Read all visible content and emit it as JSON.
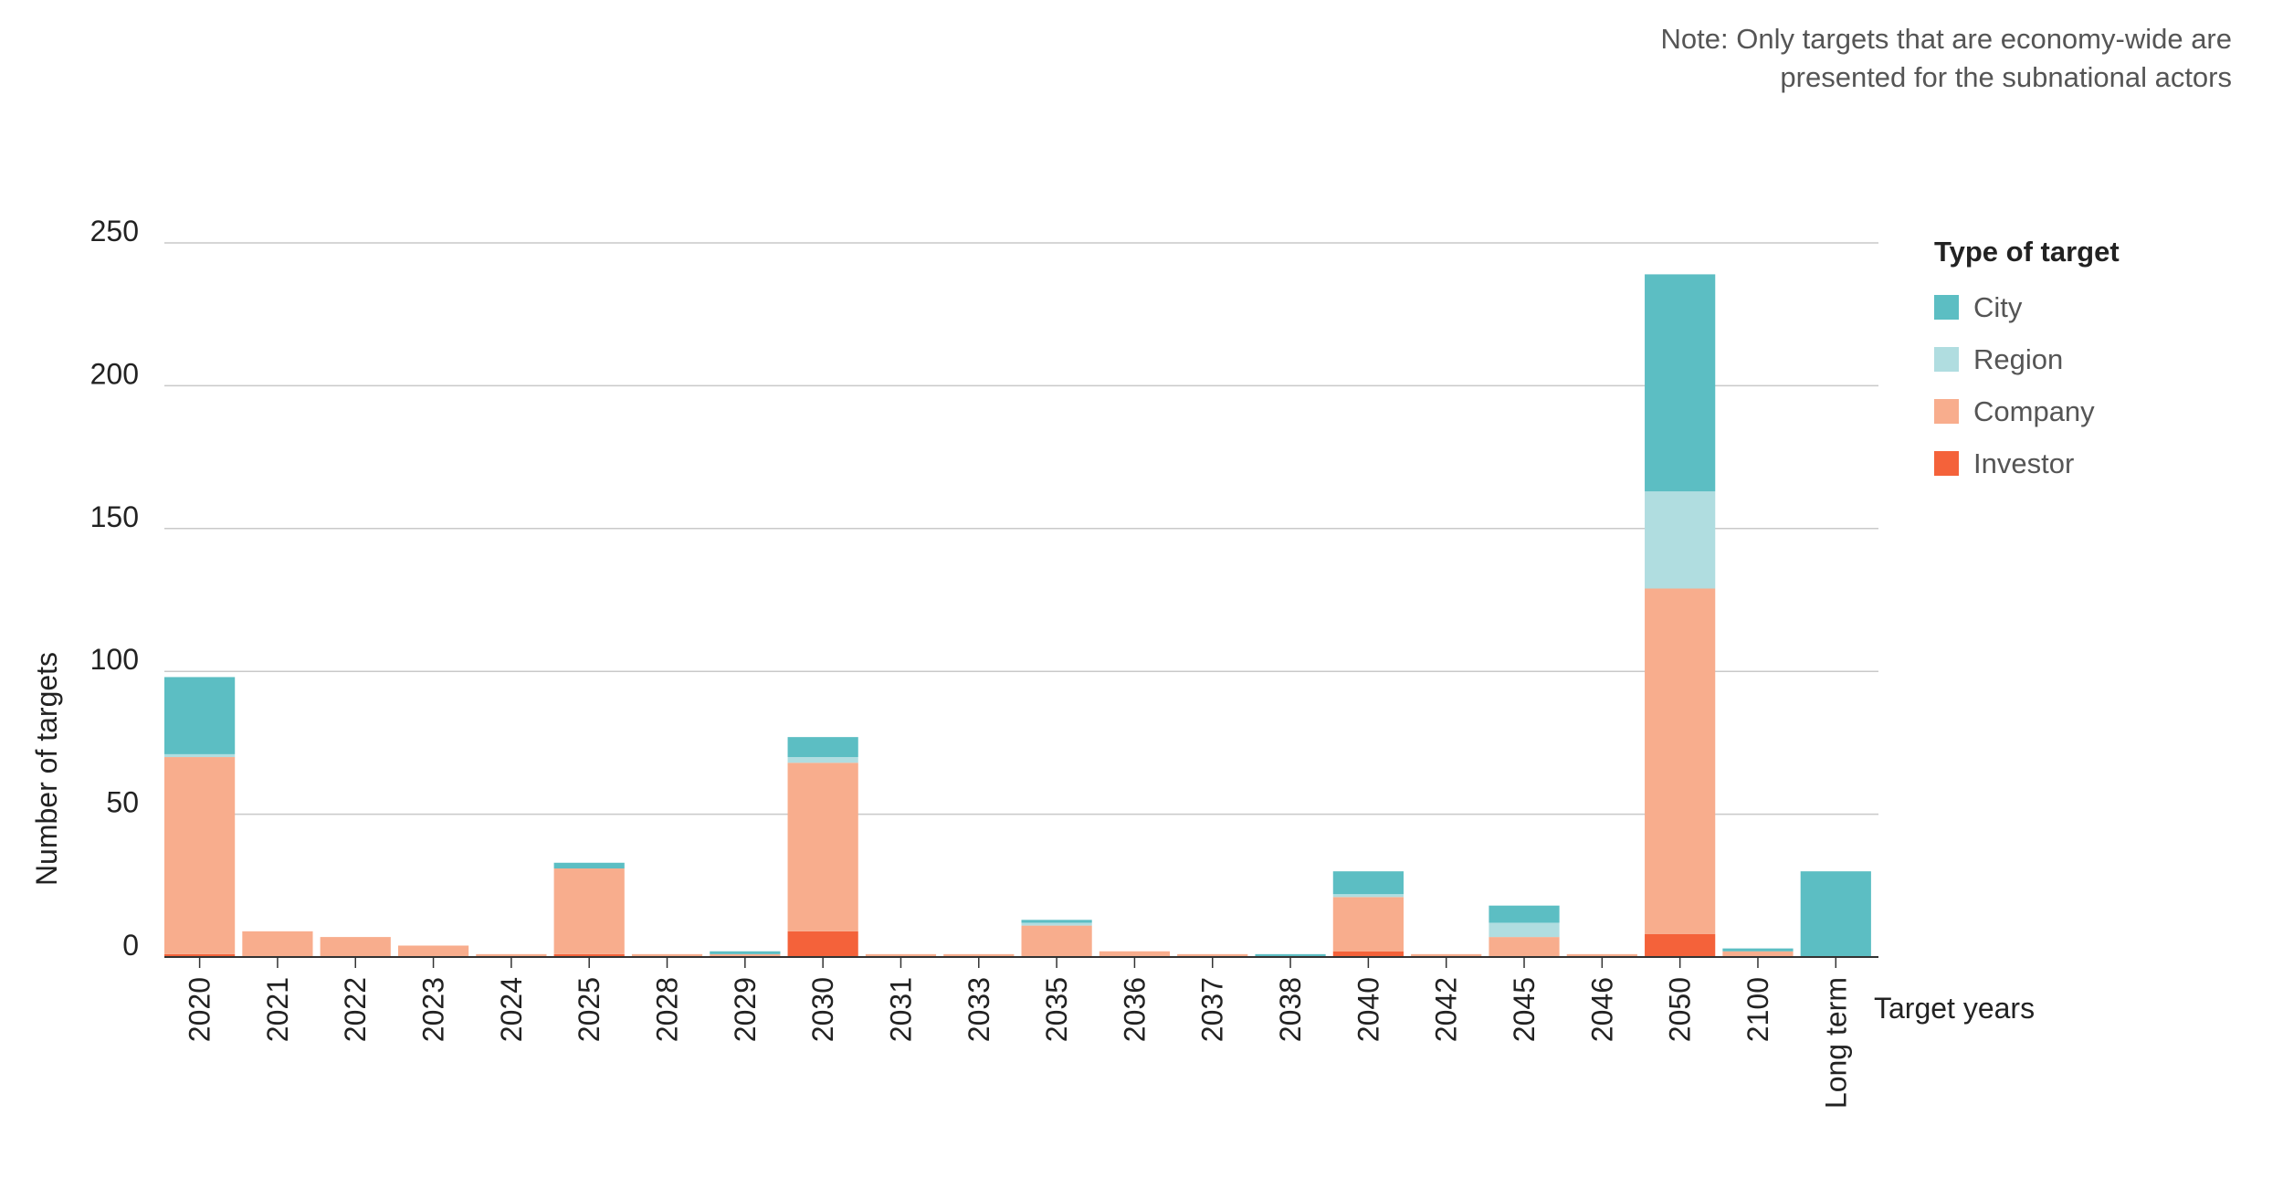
{
  "note": [
    "Note: Only targets that are economy-wide are",
    "presented for the subnational actors"
  ],
  "chart_data": {
    "type": "bar",
    "stacked": true,
    "ylabel": "Number of targets",
    "xlabel": "Target years",
    "ylim": [
      0,
      250
    ],
    "yticks": [
      0,
      50,
      100,
      150,
      200,
      250
    ],
    "grid": true,
    "legend_title": "Type of target",
    "legend_position": "right",
    "categories": [
      "2020",
      "2021",
      "2022",
      "2023",
      "2024",
      "2025",
      "2028",
      "2029",
      "2030",
      "2031",
      "2033",
      "2035",
      "2036",
      "2037",
      "2038",
      "2040",
      "2042",
      "2045",
      "2046",
      "2050",
      "2100",
      "Long term"
    ],
    "series": [
      {
        "name": "Investor",
        "color": "#f4623a",
        "values": [
          1,
          0,
          0,
          0,
          0,
          1,
          0,
          0,
          9,
          0,
          0,
          0,
          0,
          0,
          0,
          2,
          0,
          0,
          0,
          8,
          0,
          0
        ]
      },
      {
        "name": "Company",
        "color": "#f8ad8d",
        "values": [
          69,
          9,
          7,
          4,
          1,
          30,
          1,
          1,
          59,
          1,
          1,
          11,
          2,
          1,
          0,
          19,
          1,
          7,
          1,
          121,
          2,
          0
        ]
      },
      {
        "name": "Region",
        "color": "#b0dde0",
        "values": [
          1,
          0,
          0,
          0,
          0,
          0,
          0,
          0,
          2,
          0,
          0,
          1,
          0,
          0,
          0,
          1,
          0,
          5,
          0,
          34,
          0,
          0
        ]
      },
      {
        "name": "City",
        "color": "#5cbec3",
        "values": [
          27,
          0,
          0,
          0,
          0,
          2,
          0,
          1,
          7,
          0,
          0,
          1,
          0,
          0,
          1,
          8,
          0,
          6,
          0,
          76,
          1,
          30
        ]
      }
    ]
  }
}
